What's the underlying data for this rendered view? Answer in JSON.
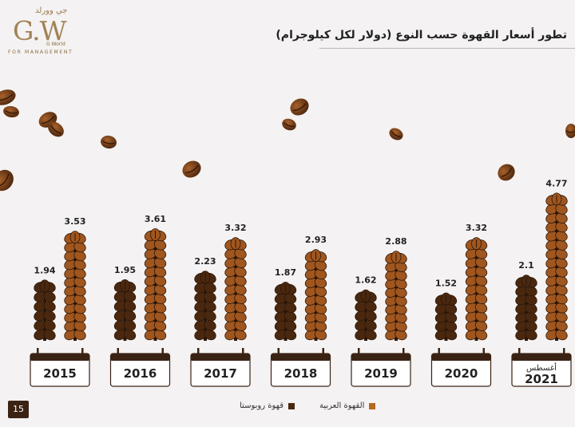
{
  "logo": {
    "arabic": "جي وورلد",
    "mark": "G.W",
    "sub": "G World",
    "tagline": "FOR MANAGEMENT"
  },
  "title": "تطور أسعار القهوة حسب النوع (دولار لكل كيلوجرام)",
  "page_number": "15",
  "colors": {
    "robusta": "#4a2810",
    "arabica": "#a0561f",
    "calendar_dark": "#3b2314",
    "background": "#f4f2f2"
  },
  "chart_data": {
    "type": "bar",
    "categories": [
      "2015",
      "2016",
      "2017",
      "2018",
      "2019",
      "2020",
      "2021"
    ],
    "category_notes": [
      "",
      "",
      "",
      "",
      "",
      "",
      "أغسطس"
    ],
    "series": [
      {
        "name": "قهوة روبوستا",
        "values": [
          1.94,
          1.95,
          2.23,
          1.87,
          1.62,
          1.52,
          2.1
        ]
      },
      {
        "name": "القهوة العربية",
        "values": [
          3.53,
          3.61,
          3.32,
          2.93,
          2.88,
          3.32,
          4.77
        ]
      }
    ],
    "legend": {
      "position": "bottom-center"
    },
    "grid": false
  }
}
